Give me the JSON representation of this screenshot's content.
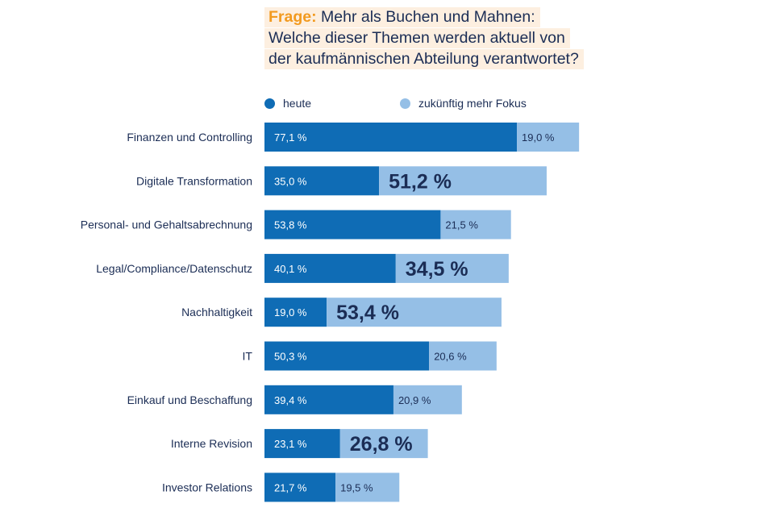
{
  "question": {
    "prefix": "Frage:",
    "text": "Mehr als Buchen und Mahnen: Welche dieser Themen werden aktuell von der kaufmännischen Abteilung verantwortet?"
  },
  "colors": {
    "heute": "#0f6cb5",
    "zukuenftig": "#95bfe6",
    "label_on_dark": "#ffffff",
    "label_on_light": "#1b2d55",
    "accent": "#f29a1f"
  },
  "chart_data": {
    "type": "bar",
    "orientation": "horizontal",
    "stacked": true,
    "categories": [
      "Finanzen und Controlling",
      "Digitale Transformation",
      "Personal- und Gehaltsabrechnung",
      "Legal/Compliance/Datenschutz",
      "Nachhaltigkeit",
      "IT",
      "Einkauf und Beschaffung",
      "Interne Revision",
      "Investor Relations"
    ],
    "series": [
      {
        "name": "heute",
        "values": [
          77.1,
          35.0,
          53.8,
          40.1,
          19.0,
          50.3,
          39.4,
          23.1,
          21.7
        ],
        "labels": [
          "77,1 %",
          "35,0 %",
          "53,8 %",
          "40,1 %",
          "19,0 %",
          "50,3 %",
          "39,4 %",
          "23,1 %",
          "21,7 %"
        ]
      },
      {
        "name": "zukünftig mehr Fokus",
        "values": [
          19.0,
          51.2,
          21.5,
          34.5,
          53.4,
          20.6,
          20.9,
          26.8,
          19.5
        ],
        "labels": [
          "19,0 %",
          "51,2 %",
          "21,5 %",
          "34,5 %",
          "53,4 %",
          "20,6 %",
          "20,9 %",
          "26,8 %",
          "19,5 %"
        ],
        "emphasized": [
          false,
          true,
          false,
          true,
          true,
          false,
          false,
          true,
          false
        ]
      }
    ],
    "legend": "top"
  }
}
